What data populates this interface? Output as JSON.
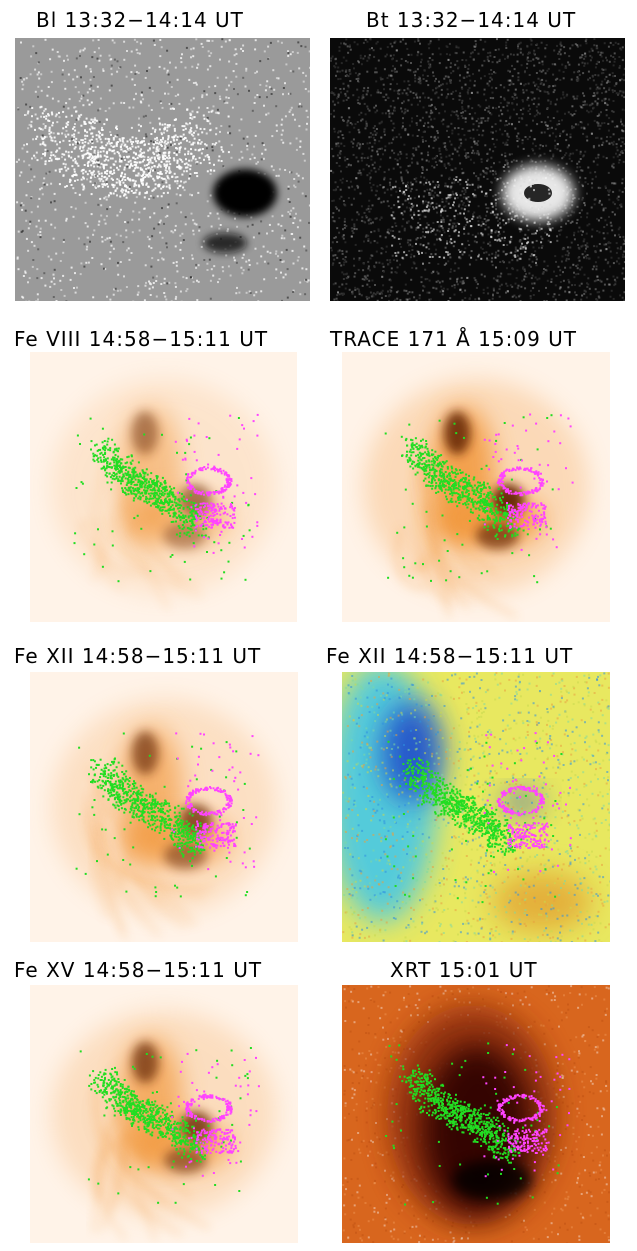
{
  "panels": [
    {
      "id": "bl",
      "title": "Bl 13:32−14:14 UT",
      "colormap": "magnetogram-gray",
      "overlay": false
    },
    {
      "id": "bt",
      "title": "Bt 13:32−14:14 UT",
      "colormap": "black-white",
      "overlay": false
    },
    {
      "id": "fe8",
      "title": "Fe VIII 14:58−15:11 UT",
      "colormap": "orange-intensity",
      "overlay": true
    },
    {
      "id": "trace",
      "title": "TRACE 171 Å 15:09 UT",
      "colormap": "orange-intensity-strong",
      "overlay": true
    },
    {
      "id": "fe12",
      "title": "Fe XII 14:58−15:11 UT",
      "colormap": "orange-intensity",
      "overlay": true
    },
    {
      "id": "fe12v",
      "title": "Fe XII 14:58−15:11 UT",
      "colormap": "doppler-rainbow",
      "overlay": true
    },
    {
      "id": "fe15",
      "title": "Fe XV 14:58−15:11 UT",
      "colormap": "orange-intensity",
      "overlay": true
    },
    {
      "id": "xrt",
      "title": "XRT 15:01 UT",
      "colormap": "red-dark",
      "overlay": true
    }
  ],
  "overlay_colors": {
    "positive": "#22dd22",
    "negative": "#ff44ff"
  },
  "colors": {
    "gray_bg": "#9a9a9a",
    "black_bg": "#0a0a0a",
    "orange_light": "#fff3e8",
    "orange_mid": "#f29a40",
    "orange_dark": "#5a1a05",
    "doppler_blue": "#1a44c8",
    "doppler_cyan": "#44c8e8",
    "doppler_yellow": "#e8e860",
    "xrt_bg": "#d8661e",
    "xrt_dark": "#2a0502"
  }
}
